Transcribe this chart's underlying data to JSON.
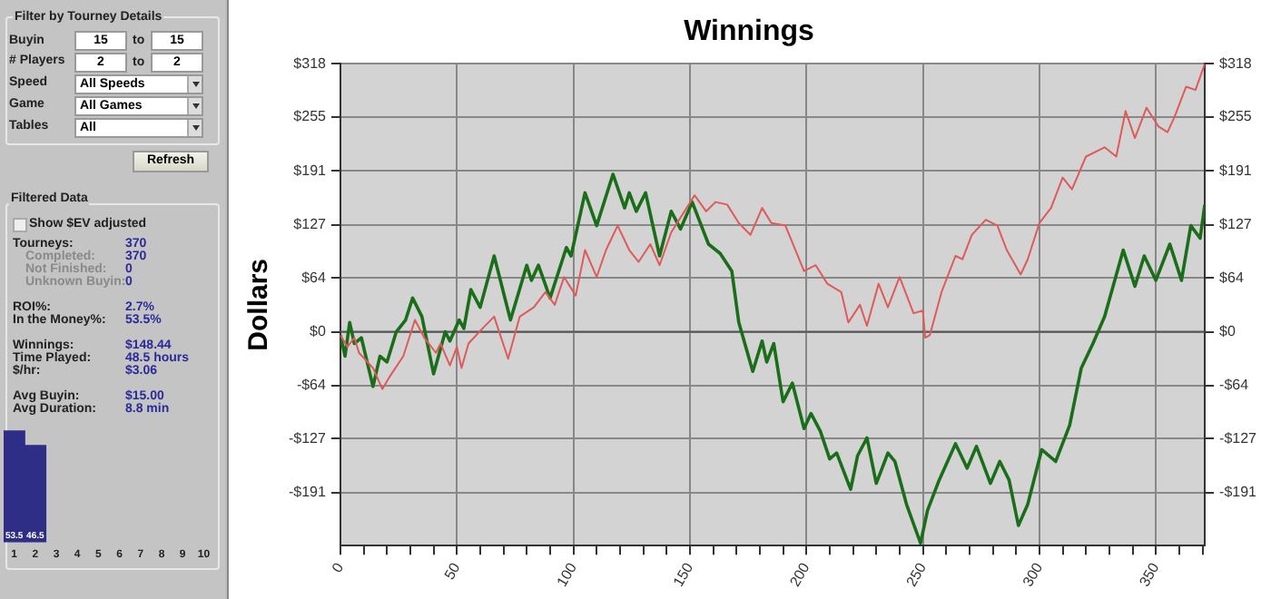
{
  "chart_data": [
    {
      "type": "other",
      "annotations": [
        "Filter by Tourney Details",
        "Buyin",
        "15",
        "to",
        "15",
        "# Players",
        "2",
        "to",
        "2",
        "Speed",
        "All Speeds",
        "Game",
        "All Games",
        "Tables",
        "All",
        "Refresh",
        "Filtered Data",
        "Show $EV adjusted",
        "Tourneys:",
        "370",
        "Completed:",
        "370",
        "Not Finished:",
        "0",
        "Unknown Buyin:",
        "0",
        "ROI%:",
        "2.7%",
        "In the Money%:",
        "53.5%",
        "Winnings:",
        "$148.44",
        "Time Played:",
        "48.5 hours",
        "$/hr:",
        "$3.06",
        "Avg Buyin:",
        "$15.00",
        "Avg Duration:",
        "8.8 min"
      ]
    },
    {
      "type": "bar",
      "categories": [
        "1",
        "2",
        "3",
        "4",
        "5",
        "6",
        "7",
        "8",
        "9",
        "10"
      ],
      "values": [
        53.5,
        46.5,
        null,
        null,
        null,
        null,
        null,
        null,
        null,
        null
      ],
      "color": "#2e2e86",
      "data_labels": true,
      "tick_labels": "x",
      "grid": false,
      "legend": false
    },
    {
      "type": "line",
      "title": "Winnings",
      "ylabel": "Dollars",
      "grid": true,
      "legend": false,
      "marker": "none",
      "line_style": "solid",
      "xlim": [
        0,
        371
      ],
      "ylim": [
        -254,
        318
      ],
      "y2lim": [
        -254,
        318
      ],
      "xticks": [
        0,
        {
          "value": 10,
          "label": null
        },
        {
          "value": 20,
          "label": null
        },
        {
          "value": 30,
          "label": null
        },
        {
          "value": 40,
          "label": null
        },
        50,
        {
          "value": 60,
          "label": null
        },
        {
          "value": 70,
          "label": null
        },
        {
          "value": 80,
          "label": null
        },
        {
          "value": 90,
          "label": null
        },
        100,
        {
          "value": 110,
          "label": null
        },
        {
          "value": 120,
          "label": null
        },
        {
          "value": 130,
          "label": null
        },
        {
          "value": 140,
          "label": null
        },
        150,
        {
          "value": 160,
          "label": null
        },
        {
          "value": 170,
          "label": null
        },
        {
          "value": 180,
          "label": null
        },
        {
          "value": 190,
          "label": null
        },
        200,
        {
          "value": 210,
          "label": null
        },
        {
          "value": 220,
          "label": null
        },
        {
          "value": 230,
          "label": null
        },
        {
          "value": 240,
          "label": null
        },
        250,
        {
          "value": 260,
          "label": null
        },
        {
          "value": 270,
          "label": null
        },
        {
          "value": 280,
          "label": null
        },
        {
          "value": 290,
          "label": null
        },
        300,
        {
          "value": 310,
          "label": null
        },
        {
          "value": 320,
          "label": null
        },
        {
          "value": 330,
          "label": null
        },
        {
          "value": 340,
          "label": null
        },
        350,
        {
          "value": 360,
          "label": null
        },
        {
          "value": 370,
          "label": null
        }
      ],
      "yticks": [
        {
          "value": 318,
          "label": "$318"
        },
        {
          "value": 255,
          "label": "$255"
        },
        {
          "value": 191,
          "label": "$191"
        },
        {
          "value": 127,
          "label": "$127"
        },
        {
          "value": 64,
          "label": "$64"
        },
        {
          "value": 0,
          "label": "$0"
        },
        {
          "value": -64,
          "label": "-$64"
        },
        {
          "value": -127,
          "label": "-$127"
        },
        {
          "value": -191,
          "label": "-$191"
        }
      ],
      "y2ticks": [
        {
          "value": 318,
          "label": "$318"
        },
        {
          "value": 255,
          "label": "$255"
        },
        {
          "value": 191,
          "label": "$191"
        },
        {
          "value": 127,
          "label": "$127"
        },
        {
          "value": 64,
          "label": "$64"
        },
        {
          "value": 0,
          "label": "$0"
        },
        {
          "value": -64,
          "label": "-$64"
        },
        {
          "value": -127,
          "label": "-$127"
        },
        {
          "value": -191,
          "label": "-$191"
        }
      ],
      "ref_lines": [
        {
          "axis": "y",
          "value": 0,
          "color": "#555555"
        }
      ],
      "series": [
        {
          "color": "#e05a5a",
          "x": [
            0,
            3,
            6,
            8,
            14,
            18,
            21,
            27,
            32,
            36,
            41,
            43,
            47,
            50,
            52,
            55,
            61,
            66,
            72,
            77,
            83,
            88,
            92,
            96,
            101,
            105,
            110,
            114,
            119,
            124,
            128,
            133,
            137,
            142,
            147,
            152,
            157,
            161,
            166,
            171,
            176,
            181,
            185,
            191,
            199,
            204,
            209,
            215,
            218,
            223,
            226,
            231,
            235,
            240,
            246,
            250,
            251,
            253,
            258,
            264,
            267,
            271,
            277,
            282,
            286,
            292,
            295,
            300,
            305,
            310,
            314,
            320,
            328,
            333,
            337,
            341,
            346,
            351,
            355,
            358,
            363,
            367,
            371
          ],
          "values": [
            -4,
            -18,
            -7,
            -25,
            -43,
            -68,
            -54,
            -29,
            14,
            -7,
            -25,
            -14,
            -40,
            -18,
            -43,
            -14,
            4,
            18,
            -32,
            18,
            29,
            47,
            32,
            65,
            43,
            97,
            65,
            97,
            126,
            97,
            83,
            104,
            79,
            118,
            140,
            162,
            143,
            154,
            151,
            129,
            115,
            147,
            129,
            126,
            72,
            79,
            57,
            47,
            11,
            32,
            7,
            57,
            29,
            65,
            22,
            25,
            -7,
            -4,
            47,
            90,
            86,
            115,
            133,
            126,
            97,
            68,
            86,
            129,
            147,
            183,
            169,
            208,
            219,
            208,
            262,
            230,
            266,
            244,
            237,
            255,
            291,
            287,
            318
          ]
        },
        {
          "color": "#1a6e1a",
          "x": [
            0,
            2,
            4,
            6,
            9,
            14,
            17,
            20,
            24,
            28,
            31,
            35,
            40,
            45,
            47,
            51,
            53,
            56,
            60,
            66,
            73,
            80,
            82,
            85,
            90,
            97,
            99,
            105,
            110,
            117,
            122,
            124,
            127,
            131,
            137,
            142,
            146,
            151,
            158,
            163,
            168,
            171,
            177,
            181,
            183,
            186,
            190,
            194,
            199,
            202,
            206,
            210,
            213,
            219,
            222,
            226,
            230,
            235,
            238,
            243,
            249,
            252,
            257,
            264,
            269,
            273,
            279,
            283,
            287,
            291,
            295,
            301,
            307,
            313,
            318,
            323,
            328,
            336,
            341,
            345,
            350,
            356,
            361,
            365,
            369,
            371
          ],
          "values": [
            -4,
            -29,
            11,
            -14,
            -7,
            -65,
            -29,
            -36,
            0,
            14,
            40,
            18,
            -50,
            0,
            -11,
            14,
            4,
            50,
            29,
            90,
            14,
            79,
            61,
            79,
            40,
            100,
            90,
            165,
            126,
            187,
            147,
            165,
            143,
            165,
            90,
            143,
            122,
            154,
            104,
            93,
            72,
            11,
            -47,
            -11,
            -36,
            -14,
            -83,
            -61,
            -115,
            -97,
            -118,
            -151,
            -144,
            -187,
            -147,
            -126,
            -180,
            -144,
            -154,
            -205,
            -251,
            -212,
            -176,
            -133,
            -162,
            -136,
            -180,
            -154,
            -176,
            -230,
            -205,
            -140,
            -154,
            -111,
            -43,
            -14,
            18,
            97,
            54,
            90,
            61,
            104,
            61,
            126,
            111,
            151
          ]
        }
      ]
    }
  ]
}
